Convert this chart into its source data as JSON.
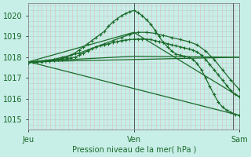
{
  "bg_color": "#c8eee8",
  "grid_color_h": "#aad4cc",
  "grid_color_v": "#e8b8b8",
  "line_color": "#1a6b2a",
  "xlabel": "Pression niveau de la mer( hPa )",
  "yticks": [
    1015,
    1016,
    1017,
    1018,
    1019,
    1020
  ],
  "xtick_labels": [
    "Jeu",
    "Ven",
    "Sam"
  ],
  "xtick_pos": [
    0.0,
    0.5,
    1.0
  ],
  "xlim": [
    0.0,
    1.0
  ],
  "ylim": [
    1014.5,
    1020.6
  ],
  "vline_x": 0.5,
  "vline2_x": 0.97,
  "series_with_markers": [
    {
      "x": [
        0.0,
        0.02,
        0.04,
        0.06,
        0.08,
        0.1,
        0.12,
        0.14,
        0.16,
        0.18,
        0.2,
        0.22,
        0.24,
        0.26,
        0.28,
        0.3,
        0.32,
        0.34,
        0.36,
        0.38,
        0.4,
        0.42,
        0.44,
        0.46,
        0.48,
        0.5,
        0.52,
        0.54,
        0.56,
        0.58,
        0.6,
        0.62,
        0.64,
        0.66,
        0.68,
        0.7,
        0.72,
        0.74,
        0.76,
        0.78,
        0.8,
        0.82,
        0.84,
        0.86,
        0.88,
        0.9,
        0.92,
        0.94,
        0.96,
        0.98,
        1.0
      ],
      "y": [
        1017.75,
        1017.77,
        1017.78,
        1017.8,
        1017.82,
        1017.84,
        1017.87,
        1017.9,
        1017.95,
        1018.0,
        1018.1,
        1018.2,
        1018.35,
        1018.5,
        1018.65,
        1018.8,
        1018.95,
        1019.1,
        1019.25,
        1019.5,
        1019.7,
        1019.85,
        1020.0,
        1020.1,
        1020.2,
        1020.25,
        1020.15,
        1020.0,
        1019.8,
        1019.6,
        1019.3,
        1019.0,
        1018.7,
        1018.5,
        1018.3,
        1018.15,
        1018.1,
        1018.05,
        1018.0,
        1017.9,
        1017.7,
        1017.4,
        1017.0,
        1016.6,
        1016.2,
        1015.85,
        1015.6,
        1015.45,
        1015.35,
        1015.25,
        1015.2
      ]
    },
    {
      "x": [
        0.0,
        0.02,
        0.04,
        0.06,
        0.08,
        0.1,
        0.12,
        0.14,
        0.16,
        0.18,
        0.2,
        0.22,
        0.24,
        0.26,
        0.28,
        0.3,
        0.32,
        0.34,
        0.36,
        0.38,
        0.4,
        0.42,
        0.44,
        0.46,
        0.48,
        0.5,
        0.52,
        0.54,
        0.56,
        0.58,
        0.6,
        0.62,
        0.64,
        0.66,
        0.68,
        0.7,
        0.72,
        0.74,
        0.76,
        0.78,
        0.8,
        0.82,
        0.84,
        0.86,
        0.88,
        0.9,
        0.92,
        0.94,
        0.96,
        0.98,
        1.0
      ],
      "y": [
        1017.75,
        1017.76,
        1017.77,
        1017.78,
        1017.8,
        1017.82,
        1017.85,
        1017.88,
        1017.9,
        1017.93,
        1017.97,
        1018.0,
        1018.1,
        1018.2,
        1018.3,
        1018.4,
        1018.5,
        1018.55,
        1018.6,
        1018.65,
        1018.7,
        1018.75,
        1018.8,
        1018.83,
        1018.85,
        1018.87,
        1018.88,
        1018.88,
        1018.87,
        1018.85,
        1018.8,
        1018.75,
        1018.7,
        1018.65,
        1018.6,
        1018.55,
        1018.5,
        1018.45,
        1018.4,
        1018.35,
        1018.25,
        1018.1,
        1017.9,
        1017.65,
        1017.4,
        1017.15,
        1016.9,
        1016.65,
        1016.4,
        1016.2,
        1016.1
      ]
    },
    {
      "x": [
        0.0,
        0.04,
        0.08,
        0.12,
        0.16,
        0.2,
        0.24,
        0.28,
        0.32,
        0.36,
        0.4,
        0.44,
        0.48,
        0.52,
        0.56,
        0.6,
        0.64,
        0.68,
        0.72,
        0.76,
        0.8,
        0.84,
        0.88,
        0.92,
        0.96,
        1.0
      ],
      "y": [
        1017.75,
        1017.8,
        1017.85,
        1017.9,
        1018.0,
        1018.1,
        1018.2,
        1018.35,
        1018.5,
        1018.65,
        1018.8,
        1018.95,
        1019.1,
        1019.2,
        1019.2,
        1019.15,
        1019.05,
        1018.95,
        1018.85,
        1018.75,
        1018.6,
        1018.3,
        1017.9,
        1017.4,
        1016.9,
        1016.45
      ]
    }
  ],
  "series_straight": [
    {
      "x": [
        0.0,
        1.0
      ],
      "y": [
        1017.78,
        1018.0
      ]
    },
    {
      "x": [
        0.0,
        1.0
      ],
      "y": [
        1017.78,
        1015.2
      ]
    },
    {
      "x": [
        0.0,
        0.5,
        1.0
      ],
      "y": [
        1017.78,
        1018.05,
        1018.0
      ]
    },
    {
      "x": [
        0.0,
        0.5,
        1.0
      ],
      "y": [
        1017.78,
        1019.2,
        1016.1
      ]
    }
  ]
}
